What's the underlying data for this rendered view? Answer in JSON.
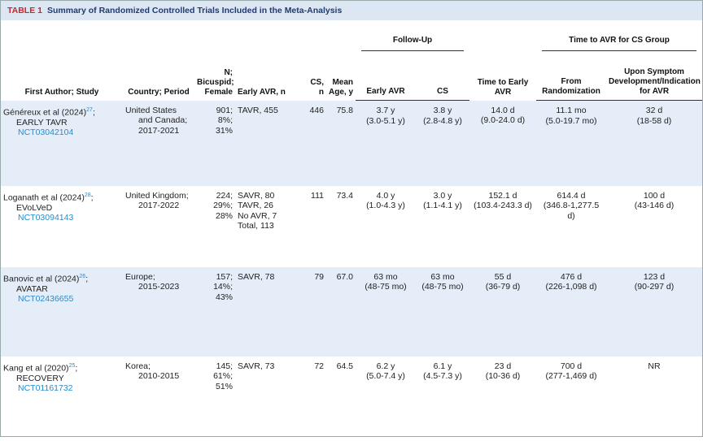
{
  "header": {
    "label": "TABLE 1",
    "title": "Summary of Randomized Controlled Trials Included in the Meta-Analysis"
  },
  "table": {
    "group_headers": [
      "Follow-Up",
      "Time to AVR for CS Group"
    ],
    "columns": [
      "First Author; Study",
      "Country; Period",
      "N; Bicuspid; Female",
      "Early AVR, n",
      "CS, n",
      "Mean Age, y",
      "Early AVR",
      "CS",
      "Time to Early AVR",
      "From Randomization",
      "Upon Symptom Development/Indication for AVR"
    ],
    "rows": [
      [
        {
          "author": "Généreux et al (2024)",
          "ref": "27",
          "punct": ";",
          "study": "EARLY TAVR",
          "trial_id": "NCT03042104"
        },
        [
          "United States",
          "and Canada;",
          "2017-2021"
        ],
        [
          "901;",
          "8%;",
          "31%"
        ],
        [
          "TAVR, 455"
        ],
        [
          "446"
        ],
        [
          "75.8"
        ],
        [
          "3.7 y",
          "(3.0-5.1 y)"
        ],
        [
          "3.8 y",
          "(2.8-4.8 y)"
        ],
        [
          "14.0 d",
          "(9.0-24.0 d)"
        ],
        [
          "11.1 mo",
          "(5.0-19.7 mo)"
        ],
        [
          "32 d",
          "(18-58 d)"
        ]
      ],
      [
        {
          "author": "Loganath et al (2024)",
          "ref": "28",
          "punct": ";",
          "study": "EVoLVeD",
          "trial_id": "NCT03094143"
        },
        [
          "United Kingdom;",
          "2017-2022"
        ],
        [
          "224;",
          "29%;",
          "28%"
        ],
        [
          "SAVR, 80",
          "TAVR, 26",
          "No AVR, 7",
          "Total, 113"
        ],
        [
          "111"
        ],
        [
          "73.4"
        ],
        [
          "4.0 y",
          "(1.0-4.3 y)"
        ],
        [
          "3.0 y",
          "(1.1-4.1 y)"
        ],
        [
          "152.1 d",
          "(103.4-243.3 d)"
        ],
        [
          "614.4 d",
          "(346.8-1,277.5 d)"
        ],
        [
          "100 d",
          "(43-146 d)"
        ]
      ],
      [
        {
          "author": "Banovic et al (2024)",
          "ref": "26",
          "punct": ";",
          "study": "AVATAR",
          "trial_id": "NCT02436655"
        },
        [
          "Europe;",
          "2015-2023"
        ],
        [
          "157;",
          "14%;",
          "43%"
        ],
        [
          "SAVR, 78"
        ],
        [
          "79"
        ],
        [
          "67.0"
        ],
        [
          "63 mo",
          "(48-75 mo)"
        ],
        [
          "63 mo",
          "(48-75 mo)"
        ],
        [
          "55 d",
          "(36-79 d)"
        ],
        [
          "476 d",
          "(226-1,098 d)"
        ],
        [
          "123 d",
          "(90-297 d)"
        ]
      ],
      [
        {
          "author": "Kang et al (2020)",
          "ref": "25",
          "punct": ";",
          "study": "RECOVERY",
          "trial_id": "NCT01161732"
        },
        [
          "Korea;",
          "2010-2015"
        ],
        [
          "145;",
          "61%;",
          "51%"
        ],
        [
          "SAVR, 73"
        ],
        [
          "72"
        ],
        [
          "64.5"
        ],
        [
          "6.2 y",
          "(5.0-7.4 y)"
        ],
        [
          "6.1 y",
          "(4.5-7.3 y)"
        ],
        [
          "23 d",
          "(10-36 d)"
        ],
        [
          "700 d",
          "(277-1,469 d)"
        ],
        [
          "NR"
        ]
      ]
    ]
  }
}
